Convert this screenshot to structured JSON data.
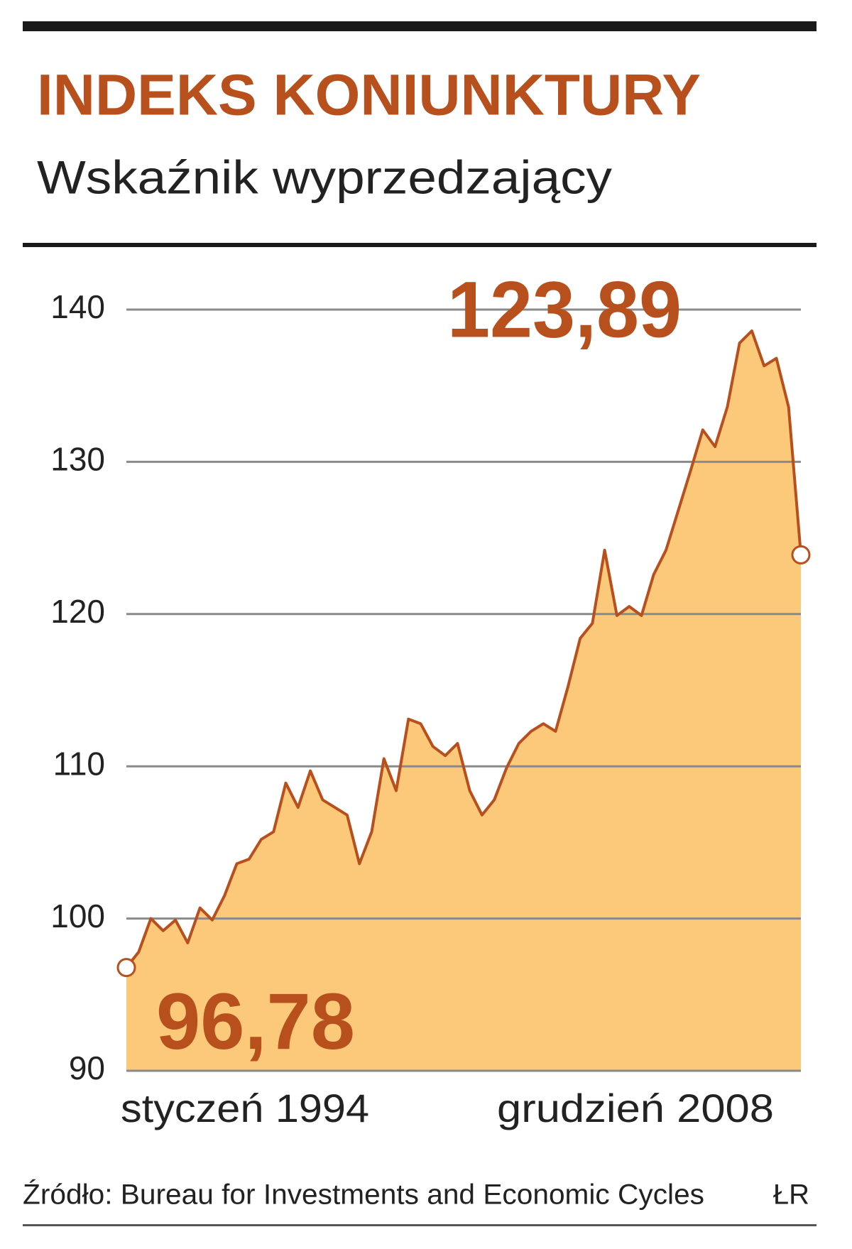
{
  "chart_data": {
    "type": "area",
    "title": "INDEKS KONIUNKTURY",
    "subtitle": "Wskaźnik wyprzedzający",
    "source": "Źródło: Bureau for Investments and Economic Cycles",
    "credit": "ŁR",
    "categories": [
      "styczeń 1994",
      null,
      null,
      null,
      null,
      null,
      null,
      null,
      null,
      null,
      null,
      null,
      null,
      null,
      null,
      null,
      null,
      null,
      null,
      null,
      null,
      null,
      null,
      null,
      null,
      null,
      null,
      null,
      null,
      null,
      null,
      null,
      null,
      null,
      null,
      null,
      null,
      null,
      null,
      null,
      null,
      null,
      null,
      null,
      null,
      null,
      null,
      null,
      null,
      null,
      null,
      null,
      null,
      null,
      null,
      "grudzień 2008"
    ],
    "values": [
      96.78,
      97.8,
      100,
      99.2,
      99.9,
      98.4,
      100.7,
      99.9,
      101.5,
      103.6,
      103.9,
      105.2,
      105.7,
      108.9,
      107.3,
      109.7,
      107.8,
      107.3,
      106.8,
      103.6,
      105.7,
      110.5,
      108.4,
      113.1,
      112.8,
      111.3,
      110.7,
      111.5,
      108.4,
      106.8,
      107.8,
      109.9,
      111.5,
      112.3,
      112.8,
      112.3,
      115.2,
      118.4,
      119.4,
      124.2,
      119.9,
      120.5,
      119.9,
      122.6,
      124.2,
      126.8,
      129.4,
      132.1,
      131,
      133.6,
      137.8,
      138.6,
      136.3,
      136.8,
      133.6,
      123.89
    ],
    "value_labels": [
      "96,78",
      null,
      null,
      null,
      null,
      null,
      null,
      null,
      null,
      null,
      null,
      null,
      null,
      null,
      null,
      null,
      null,
      null,
      null,
      null,
      null,
      null,
      null,
      null,
      null,
      null,
      null,
      null,
      null,
      null,
      null,
      null,
      null,
      null,
      null,
      null,
      null,
      null,
      null,
      null,
      null,
      null,
      null,
      null,
      null,
      null,
      null,
      null,
      null,
      null,
      null,
      null,
      null,
      null,
      null,
      "123,89"
    ],
    "color": "#b8501e",
    "fill": "#fcc97b",
    "ylim": [
      90,
      140
    ],
    "yticks": [
      90,
      100,
      110,
      120,
      130,
      140
    ],
    "grid": true
  }
}
